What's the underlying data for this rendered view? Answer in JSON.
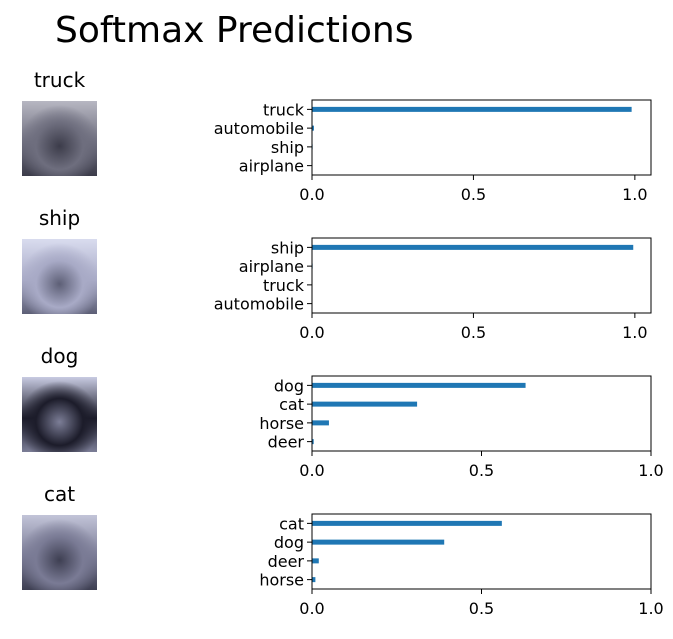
{
  "figure": {
    "title": "Softmax Predictions"
  },
  "rows": [
    {
      "image_label": "truck",
      "thumb_colors": [
        "#6e6e7e",
        "#b7b7c2",
        "#3c3c4a"
      ]
    },
    {
      "image_label": "ship",
      "thumb_colors": [
        "#a8aac6",
        "#d9dcef",
        "#5d5f76"
      ]
    },
    {
      "image_label": "dog",
      "thumb_colors": [
        "#1c1c2a",
        "#c8cbe2",
        "#7c7e97"
      ]
    },
    {
      "image_label": "cat",
      "thumb_colors": [
        "#7a7b95",
        "#c2c4d8",
        "#3e3f52"
      ]
    }
  ],
  "colors": {
    "bar": "#1f77b4",
    "axis": "#000000"
  },
  "chart_data": [
    {
      "type": "bar",
      "orientation": "horizontal",
      "categories": [
        "truck",
        "automobile",
        "ship",
        "airplane"
      ],
      "values": [
        0.99,
        0.006,
        0.002,
        0.001
      ],
      "xlim": [
        0,
        1.05
      ],
      "xticks": [
        "0.0",
        "0.5",
        "1.0"
      ],
      "xtick_values": [
        0,
        0.5,
        1.0
      ],
      "grid": false
    },
    {
      "type": "bar",
      "orientation": "horizontal",
      "categories": [
        "ship",
        "airplane",
        "truck",
        "automobile"
      ],
      "values": [
        0.995,
        0.002,
        0.001,
        0.001
      ],
      "xlim": [
        0,
        1.05
      ],
      "xticks": [
        "0.0",
        "0.5",
        "1.0"
      ],
      "xtick_values": [
        0,
        0.5,
        1.0
      ],
      "grid": false
    },
    {
      "type": "bar",
      "orientation": "horizontal",
      "categories": [
        "dog",
        "cat",
        "horse",
        "deer"
      ],
      "values": [
        0.63,
        0.31,
        0.05,
        0.005
      ],
      "xlim": [
        0,
        1.0
      ],
      "xticks": [
        "0.0",
        "0.5",
        "1.0"
      ],
      "xtick_values": [
        0,
        0.5,
        1.0
      ],
      "grid": false
    },
    {
      "type": "bar",
      "orientation": "horizontal",
      "categories": [
        "cat",
        "dog",
        "deer",
        "horse"
      ],
      "values": [
        0.56,
        0.39,
        0.02,
        0.01
      ],
      "xlim": [
        0,
        1.0
      ],
      "xticks": [
        "0.0",
        "0.5",
        "1.0"
      ],
      "xtick_values": [
        0,
        0.5,
        1.0
      ],
      "grid": false
    }
  ]
}
